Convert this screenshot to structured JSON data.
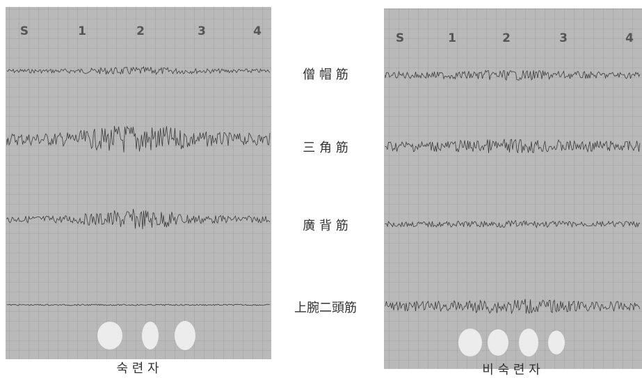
{
  "left_panel": {
    "markers": [
      "S",
      "1",
      "2",
      "3",
      "4"
    ],
    "caption": "숙 련 자"
  },
  "right_panel": {
    "markers": [
      "S",
      "1",
      "2",
      "3",
      "4"
    ],
    "caption": "비 숙 련 자"
  },
  "muscles": [
    "僧 帽 筋",
    "三 角 筋",
    "廣 背 筋",
    "上腕二頭筋"
  ]
}
